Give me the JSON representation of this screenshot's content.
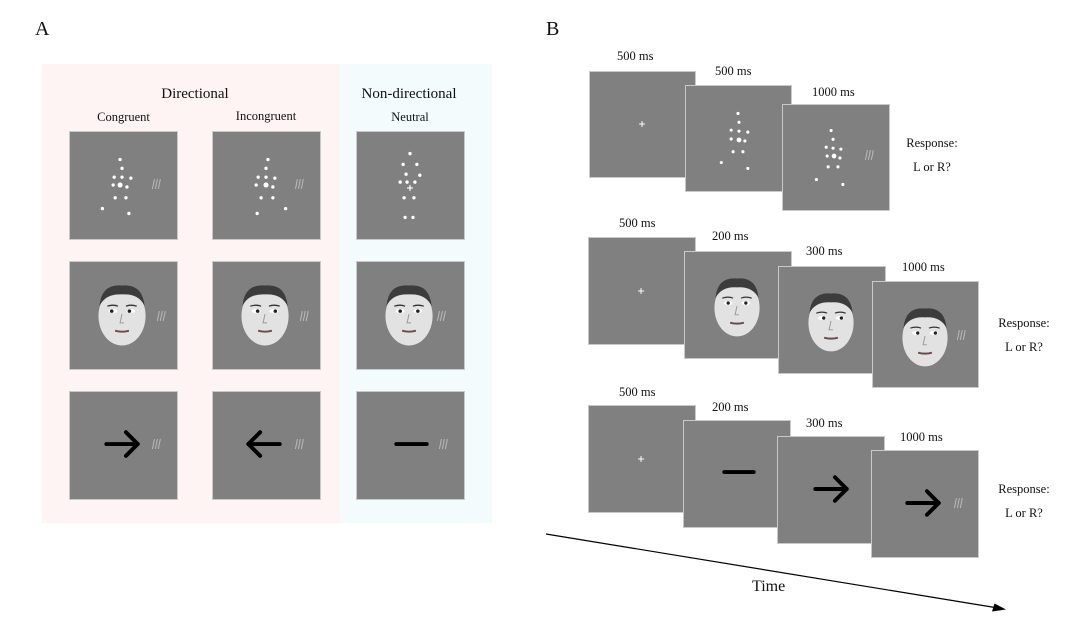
{
  "panel_a": {
    "letter": "A",
    "directional_header": "Directional",
    "nondirectional_header": "Non-directional",
    "conditions": {
      "congruent": "Congruent",
      "incongruent": "Incongruent",
      "neutral": "Neutral"
    },
    "rows": [
      "point-light walker",
      "face",
      "arrow"
    ]
  },
  "panel_b": {
    "letter": "B",
    "sequences": [
      {
        "stimulus": "point-light walker",
        "frames": [
          {
            "duration": "500 ms",
            "content": "fixation"
          },
          {
            "duration": "500 ms",
            "content": "walker"
          },
          {
            "duration": "1000 ms",
            "content": "walker + target"
          }
        ],
        "response_line1": "Response:",
        "response_line2": "L or R?"
      },
      {
        "stimulus": "face",
        "frames": [
          {
            "duration": "500 ms",
            "content": "fixation"
          },
          {
            "duration": "200 ms",
            "content": "face"
          },
          {
            "duration": "300 ms",
            "content": "face with gaze"
          },
          {
            "duration": "1000 ms",
            "content": "face + target"
          }
        ],
        "response_line1": "Response:",
        "response_line2": "L or R?"
      },
      {
        "stimulus": "arrow",
        "frames": [
          {
            "duration": "500 ms",
            "content": "fixation"
          },
          {
            "duration": "200 ms",
            "content": "dash"
          },
          {
            "duration": "300 ms",
            "content": "arrow right"
          },
          {
            "duration": "1000 ms",
            "content": "arrow right + target"
          }
        ],
        "response_line1": "Response:",
        "response_line2": "L or R?"
      }
    ],
    "time_label": "Time"
  },
  "colors": {
    "directional_bg": "#fdf4f3",
    "nondirectional_bg": "#f3fbfc",
    "frame_gray": "#808080"
  }
}
